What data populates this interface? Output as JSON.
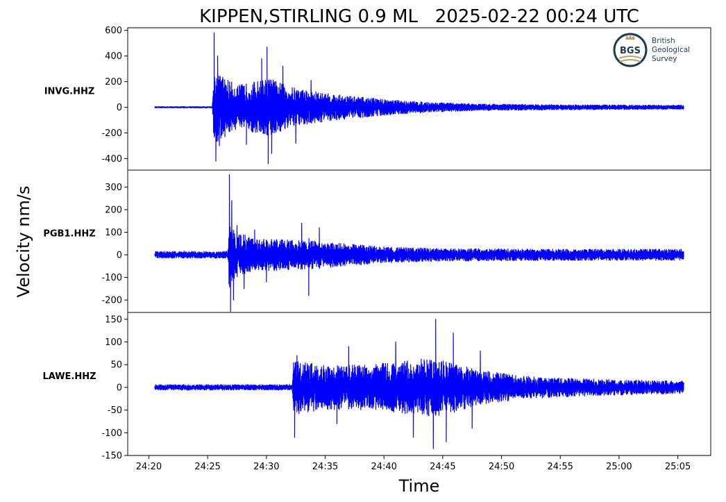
{
  "chart_data": {
    "type": "line",
    "title": "KIPPEN,STIRLING 0.9 ML   2025-02-22 00:24 UTC",
    "xlabel": "Time",
    "ylabel": "Velocity nm/s",
    "x_tick_labels": [
      "24:20",
      "24:25",
      "24:30",
      "24:35",
      "24:40",
      "24:45",
      "24:50",
      "24:55",
      "25:00",
      "25:05"
    ],
    "x_tick_seconds": [
      1460,
      1465,
      1470,
      1475,
      1480,
      1485,
      1490,
      1495,
      1500,
      1505
    ],
    "xlim": [
      1458.2,
      1507.8
    ],
    "trace_x_range": [
      1460.5,
      1505.5
    ],
    "line_color": "#0000ff",
    "grid": false,
    "panels": [
      {
        "station": "INVG.HHZ",
        "ylim": [
          -490,
          620
        ],
        "yticks": [
          -400,
          -200,
          0,
          200,
          400,
          600
        ],
        "ytick_labels": [
          "-400",
          "-200",
          "0",
          "200",
          "400",
          "600"
        ],
        "onset_x": 1465.5,
        "max_amplitude": 580,
        "min_amplitude": -440,
        "envelope": [
          [
            1460.5,
            6
          ],
          [
            1465.4,
            6
          ],
          [
            1465.5,
            280
          ],
          [
            1466.2,
            250
          ],
          [
            1467.5,
            170
          ],
          [
            1469.5,
            210
          ],
          [
            1470.2,
            230
          ],
          [
            1472.0,
            160
          ],
          [
            1475.0,
            110
          ],
          [
            1478.0,
            80
          ],
          [
            1481.0,
            55
          ],
          [
            1484.0,
            38
          ],
          [
            1488.0,
            26
          ],
          [
            1495.0,
            20
          ],
          [
            1505.5,
            16
          ]
        ],
        "spikes": [
          [
            1465.55,
            580
          ],
          [
            1465.7,
            -420
          ],
          [
            1465.85,
            400
          ],
          [
            1466.0,
            -300
          ],
          [
            1468.3,
            -290
          ],
          [
            1469.6,
            380
          ],
          [
            1470.05,
            470
          ],
          [
            1470.15,
            -440
          ],
          [
            1470.45,
            -360
          ],
          [
            1471.4,
            320
          ],
          [
            1472.5,
            -280
          ],
          [
            1473.8,
            210
          ]
        ]
      },
      {
        "station": "PGB1.HHZ",
        "ylim": [
          -255,
          375
        ],
        "yticks": [
          -200,
          -100,
          0,
          100,
          200,
          300
        ],
        "ytick_labels": [
          "-200",
          "-100",
          "0",
          "100",
          "200",
          "300"
        ],
        "onset_x": 1466.8,
        "max_amplitude": 355,
        "min_amplitude": -250,
        "envelope": [
          [
            1460.5,
            18
          ],
          [
            1466.7,
            18
          ],
          [
            1466.8,
            130
          ],
          [
            1467.5,
            100
          ],
          [
            1469.0,
            75
          ],
          [
            1471.0,
            68
          ],
          [
            1474.0,
            62
          ],
          [
            1477.0,
            48
          ],
          [
            1480.0,
            35
          ],
          [
            1485.0,
            28
          ],
          [
            1495.0,
            25
          ],
          [
            1505.5,
            25
          ]
        ],
        "spikes": [
          [
            1466.85,
            355
          ],
          [
            1466.95,
            -250
          ],
          [
            1467.05,
            240
          ],
          [
            1467.2,
            -200
          ],
          [
            1467.5,
            130
          ],
          [
            1468.1,
            -150
          ],
          [
            1469.0,
            110
          ],
          [
            1470.0,
            -120
          ],
          [
            1473.0,
            140
          ],
          [
            1473.6,
            -180
          ],
          [
            1474.5,
            120
          ]
        ]
      },
      {
        "station": "LAWE.HHZ",
        "ylim": [
          -150,
          165
        ],
        "yticks": [
          -150,
          -100,
          -50,
          0,
          50,
          100,
          150
        ],
        "ytick_labels": [
          "-150",
          "-100",
          "-50",
          "0",
          "50",
          "100",
          "150"
        ],
        "onset_x": 1472.3,
        "max_amplitude": 150,
        "min_amplitude": -135,
        "envelope": [
          [
            1460.5,
            7
          ],
          [
            1472.2,
            7
          ],
          [
            1472.3,
            60
          ],
          [
            1475.0,
            48
          ],
          [
            1478.0,
            50
          ],
          [
            1481.0,
            55
          ],
          [
            1484.0,
            65
          ],
          [
            1486.0,
            55
          ],
          [
            1488.0,
            38
          ],
          [
            1492.0,
            25
          ],
          [
            1498.0,
            18
          ],
          [
            1505.5,
            14
          ]
        ],
        "spikes": [
          [
            1472.4,
            -110
          ],
          [
            1472.6,
            70
          ],
          [
            1476.0,
            -80
          ],
          [
            1477.0,
            90
          ],
          [
            1481.0,
            100
          ],
          [
            1482.5,
            -110
          ],
          [
            1484.2,
            -135
          ],
          [
            1484.4,
            150
          ],
          [
            1485.3,
            -120
          ],
          [
            1485.9,
            120
          ],
          [
            1487.5,
            -90
          ],
          [
            1488.2,
            80
          ]
        ]
      }
    ]
  },
  "logo": {
    "initials": "BGS",
    "line1": "British",
    "line2": "Geological",
    "line3": "Survey"
  }
}
